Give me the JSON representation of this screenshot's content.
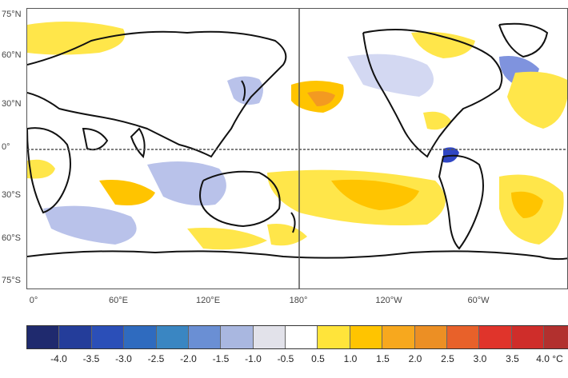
{
  "lat_labels": [
    "75°N",
    "60°N",
    "30°N",
    "0°",
    "30°S",
    "60°S",
    "75°S"
  ],
  "lon_labels": [
    "0°",
    "60°E",
    "120°E",
    "180°",
    "120°W",
    "60°W"
  ],
  "colorbar": {
    "labels": [
      "-4.0",
      "-3.5",
      "-3.0",
      "-2.5",
      "-2.0",
      "-1.5",
      "-1.0",
      "-0.5",
      "0.5",
      "1.0",
      "1.5",
      "2.0",
      "2.5",
      "3.0",
      "3.5",
      "4.0 °C"
    ],
    "colors": [
      "#1f2a6e",
      "#243d9a",
      "#2b4fb8",
      "#2f6bbf",
      "#3a86c2",
      "#6a8fd4",
      "#a9b7e0",
      "#e2e2ea",
      "#ffffff",
      "#ffe43a",
      "#ffc400",
      "#f7a81e",
      "#ec8f24",
      "#e8612a",
      "#e0342b",
      "#cf2d2a",
      "#b2302e"
    ]
  },
  "colors": {
    "land_outline": "#111111",
    "grid_line": "#555555",
    "warm_light": "#ffe64a",
    "warm_mid": "#ffc400",
    "warm_strong": "#f39a21",
    "warm_peak": "#e8612a",
    "cool_light": "#b9c2ea",
    "cool_mid": "#7f93de",
    "cool_strong": "#2f46c4"
  }
}
